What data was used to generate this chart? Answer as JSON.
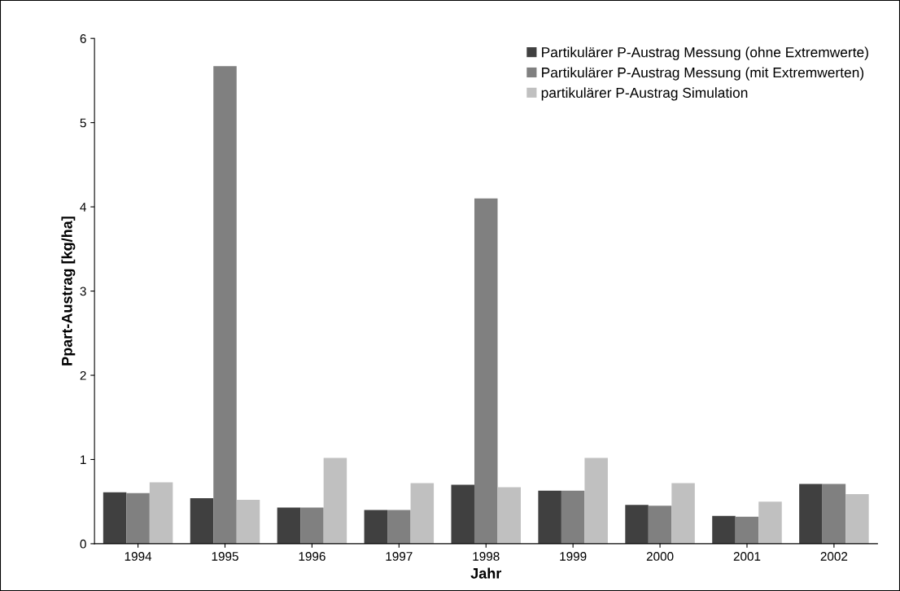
{
  "chart_data": {
    "type": "bar",
    "xlabel": "Jahr",
    "ylabel": "Ppart-Austrag [kg/ha]",
    "categories": [
      "1994",
      "1995",
      "1996",
      "1997",
      "1998",
      "1999",
      "2000",
      "2001",
      "2002"
    ],
    "series": [
      {
        "name": "Partikulärer P-Austrag Messung (ohne Extremwerte)",
        "color": "#404040",
        "values": [
          0.61,
          0.54,
          0.43,
          0.4,
          0.7,
          0.63,
          0.46,
          0.33,
          0.71
        ]
      },
      {
        "name": "Partikulärer P-Austrag Messung (mit Extremwerten)",
        "color": "#808080",
        "values": [
          0.6,
          5.67,
          0.43,
          0.4,
          4.1,
          0.63,
          0.45,
          0.32,
          0.71
        ]
      },
      {
        "name": "partikulärer P-Austrag Simulation",
        "color": "#c0c0c0",
        "values": [
          0.73,
          0.52,
          1.02,
          0.72,
          0.67,
          1.02,
          0.72,
          0.5,
          0.59
        ]
      }
    ],
    "ylim": [
      0,
      6
    ],
    "yticks": [
      0,
      1,
      2,
      3,
      4,
      5,
      6
    ],
    "grid": false,
    "legend": "top right"
  }
}
